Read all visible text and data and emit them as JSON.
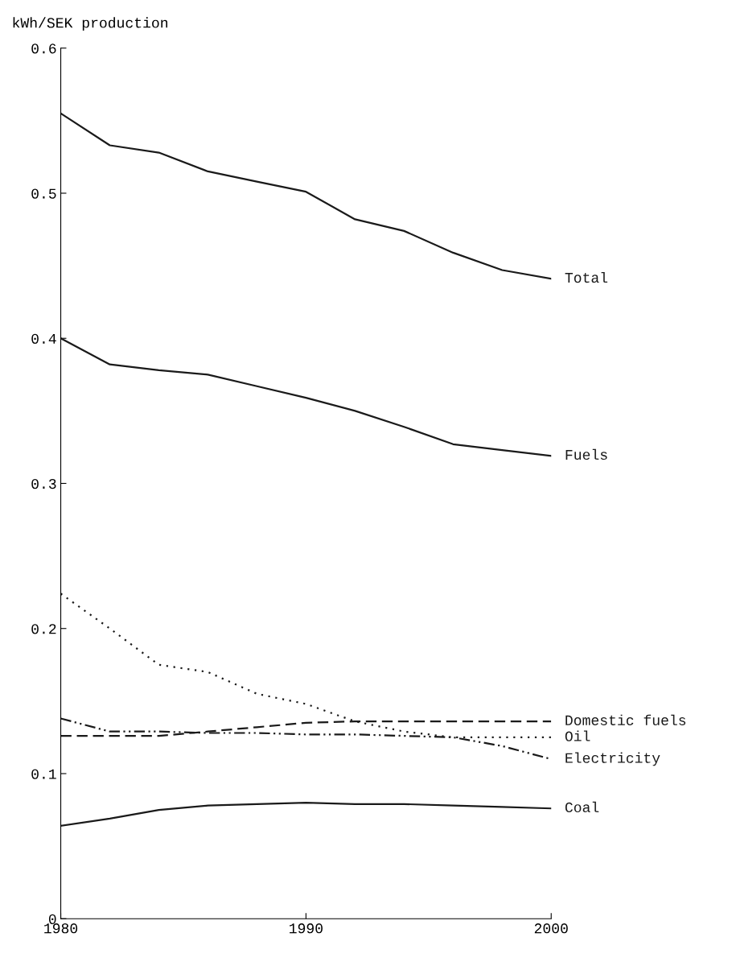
{
  "chart_data": {
    "type": "line",
    "ylabel": "kWh/SEK production",
    "x": [
      1980,
      1982,
      1984,
      1986,
      1988,
      1990,
      1992,
      1994,
      1996,
      1998,
      2000
    ],
    "series": [
      {
        "name": "Total",
        "color": "#1a1a1a",
        "line_style": "solid",
        "values": [
          0.555,
          0.533,
          0.528,
          0.515,
          0.508,
          0.501,
          0.482,
          0.474,
          0.459,
          0.447,
          0.441
        ]
      },
      {
        "name": "Fuels",
        "color": "#1a1a1a",
        "line_style": "solid",
        "values": [
          0.4,
          0.382,
          0.378,
          0.375,
          0.367,
          0.359,
          0.35,
          0.339,
          0.327,
          0.323,
          0.319
        ]
      },
      {
        "name": "Domestic fuels",
        "color": "#1a1a1a",
        "line_style": "dashed",
        "values": [
          0.126,
          0.126,
          0.126,
          0.129,
          0.132,
          0.135,
          0.136,
          0.136,
          0.136,
          0.136,
          0.136
        ]
      },
      {
        "name": "Oil",
        "color": "#1a1a1a",
        "line_style": "dotted",
        "values": [
          0.224,
          0.2,
          0.175,
          0.17,
          0.155,
          0.148,
          0.136,
          0.129,
          0.125,
          0.125,
          0.125
        ]
      },
      {
        "name": "Electricity",
        "color": "#1a1a1a",
        "line_style": "dashdot",
        "values": [
          0.138,
          0.129,
          0.129,
          0.128,
          0.128,
          0.127,
          0.127,
          0.126,
          0.125,
          0.119,
          0.11
        ]
      },
      {
        "name": "Coal",
        "color": "#1a1a1a",
        "line_style": "solid",
        "values": [
          0.064,
          0.069,
          0.075,
          0.078,
          0.079,
          0.08,
          0.079,
          0.079,
          0.078,
          0.077,
          0.076
        ]
      }
    ],
    "xlim": [
      1980,
      2000
    ],
    "xticks": [
      1980,
      1990,
      2000
    ],
    "ylim": [
      0,
      0.6
    ],
    "yticks": [
      0,
      0.1,
      0.2,
      0.3,
      0.4,
      0.5,
      0.6
    ],
    "grid": false,
    "legend": false,
    "marker": "none"
  }
}
